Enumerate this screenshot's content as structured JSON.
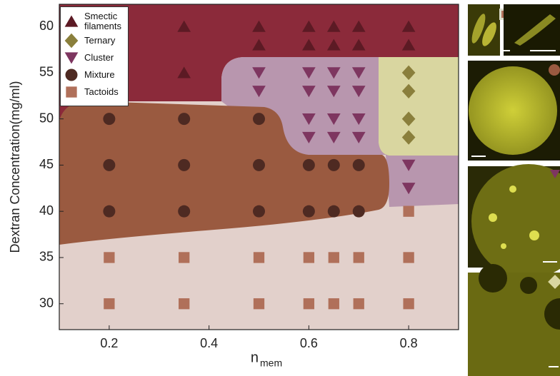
{
  "chart_data": {
    "type": "scatter",
    "xlabel": "n",
    "xlabel_subscript": "mem",
    "ylabel": "Dextran Concentration(mg/ml)",
    "xlim": [
      0.1,
      0.9
    ],
    "xticks": [
      0.2,
      0.4,
      0.6,
      0.8
    ],
    "ylim": [
      27.2,
      62.4
    ],
    "yticks": [
      30,
      35,
      40,
      45,
      50,
      55,
      60
    ],
    "legend": "upper left",
    "series": [
      {
        "name": "Smectic filaments",
        "color": "#5c1a24",
        "marker": "triangle-up",
        "x": [
          0.35,
          0.35,
          0.5,
          0.5,
          0.6,
          0.6,
          0.65,
          0.65,
          0.7,
          0.7,
          0.8,
          0.8
        ],
        "values": [
          60,
          55,
          60,
          58,
          60,
          58,
          60,
          58,
          60,
          58,
          60,
          58
        ]
      },
      {
        "name": "Ternary",
        "color": "#8a7f3c",
        "marker": "diamond",
        "x": [
          0.8,
          0.8,
          0.8,
          0.8
        ],
        "values": [
          55,
          53,
          50,
          48
        ]
      },
      {
        "name": "Cluster",
        "color": "#7e3660",
        "marker": "triangle-down",
        "x": [
          0.5,
          0.5,
          0.6,
          0.6,
          0.6,
          0.6,
          0.65,
          0.65,
          0.65,
          0.65,
          0.7,
          0.7,
          0.7,
          0.7,
          0.8,
          0.8
        ],
        "values": [
          55,
          53,
          55,
          53,
          50,
          48,
          55,
          53,
          50,
          48,
          55,
          53,
          50,
          48,
          45,
          42.5
        ]
      },
      {
        "name": "Mixture",
        "color": "#4e2a22",
        "marker": "circle",
        "x": [
          0.2,
          0.2,
          0.2,
          0.35,
          0.35,
          0.35,
          0.5,
          0.5,
          0.5,
          0.6,
          0.6,
          0.65,
          0.65,
          0.7,
          0.7
        ],
        "values": [
          50,
          45,
          40,
          50,
          45,
          40,
          50,
          45,
          40,
          45,
          40,
          45,
          40,
          45,
          40
        ]
      },
      {
        "name": "Tactoids",
        "color": "#b0705a",
        "marker": "square",
        "x": [
          0.2,
          0.35,
          0.5,
          0.6,
          0.65,
          0.7,
          0.8,
          0.2,
          0.35,
          0.5,
          0.6,
          0.65,
          0.7,
          0.8,
          0.8
        ],
        "values": [
          35,
          35,
          35,
          35,
          35,
          35,
          35,
          30,
          30,
          30,
          30,
          30,
          30,
          30,
          40
        ]
      }
    ]
  }
}
